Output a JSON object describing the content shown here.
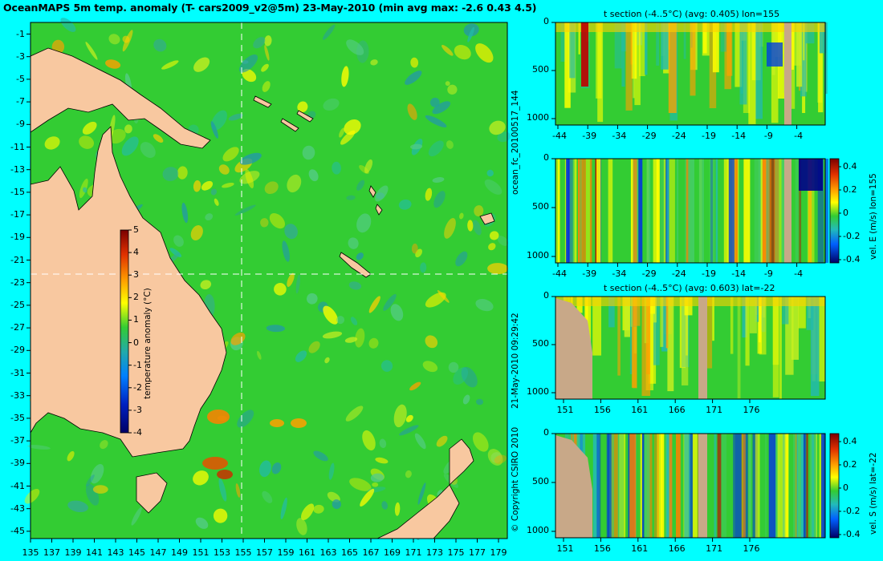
{
  "header": {
    "title": "OceanMAPS 5m temp. anomaly (T- cars2009_v2@5m) 23-May-2010 (min avg max: -2.6 0.43 4.5)"
  },
  "map": {
    "lon_ticks": [
      "135",
      "137",
      "139",
      "141",
      "143",
      "145",
      "147",
      "149",
      "151",
      "153",
      "155",
      "157",
      "159",
      "161",
      "163",
      "165",
      "167",
      "169",
      "171",
      "173",
      "175",
      "177",
      "179"
    ],
    "lat_ticks": [
      "-1",
      "-3",
      "-5",
      "-7",
      "-9",
      "-11",
      "-13",
      "-15",
      "-17",
      "-19",
      "-21",
      "-23",
      "-25",
      "-27",
      "-29",
      "-31",
      "-33",
      "-35",
      "-37",
      "-39",
      "-41",
      "-43",
      "-45"
    ],
    "crosshair_lon": 155,
    "crosshair_lat": -22,
    "colorbar": {
      "label": "temperature anomaly (°C)",
      "ticks": [
        "5",
        "4",
        "3",
        "2",
        "1",
        "0",
        "-1",
        "-2",
        "-3",
        "-4"
      ]
    }
  },
  "side": {
    "run_id": "ocean_fc_20100517_144",
    "timestamp": "21-May-2010 09:29:42",
    "copyright": "© Copyright CSIRO 2010"
  },
  "panels": [
    {
      "title": "t section (-4..5°C) (avg: 0.405) lon=155",
      "x_ticks": [
        "-44",
        "-39",
        "-34",
        "-29",
        "-24",
        "-19",
        "-14",
        "-9",
        "-4"
      ],
      "y_ticks": [
        "0",
        "500",
        "1000"
      ],
      "colorbar_label": "",
      "colorbar_ticks": []
    },
    {
      "title": "",
      "x_ticks": [
        "-44",
        "-39",
        "-34",
        "-29",
        "-24",
        "-19",
        "-14",
        "-9",
        "-4"
      ],
      "y_ticks": [
        "0",
        "500",
        "1000"
      ],
      "colorbar_label": "vel. E (m/s) lon=155",
      "colorbar_ticks": [
        "0.4",
        "0.2",
        "0",
        "-0.2",
        "-0.4"
      ]
    },
    {
      "title": "t section (-4..5°C) (avg: 0.603) lat=-22",
      "x_ticks": [
        "151",
        "156",
        "161",
        "166",
        "171",
        "176"
      ],
      "y_ticks": [
        "0",
        "500",
        "1000"
      ],
      "colorbar_label": "",
      "colorbar_ticks": []
    },
    {
      "title": "",
      "x_ticks": [
        "151",
        "156",
        "161",
        "166",
        "171",
        "176"
      ],
      "y_ticks": [
        "0",
        "500",
        "1000"
      ],
      "colorbar_label": "vel. S (m/s) lat=-22",
      "colorbar_ticks": [
        "0.4",
        "0.2",
        "0",
        "-0.2",
        "-0.4"
      ]
    }
  ],
  "colors": {
    "background": "#00ffff",
    "land": "#f8c8a0",
    "section_land": "#c8a888",
    "ocean_base": "#33cc33"
  },
  "chart_data": [
    {
      "type": "heatmap",
      "title": "OceanMAPS 5m temp. anomaly (T- cars2009_v2@5m) 23-May-2010 (min avg max: -2.6 0.43 4.5)",
      "xlabel": "",
      "ylabel": "",
      "xlim": [
        135,
        180
      ],
      "ylim": [
        -45,
        0
      ],
      "zlim": [
        -4,
        5
      ],
      "colorbar_label": "temperature anomaly (°C)",
      "grid": false
    },
    {
      "type": "heatmap",
      "title": "t section (-4..5°C) (avg: 0.405) lon=155",
      "xlim": [
        -46,
        0
      ],
      "ylim": [
        1050,
        0
      ],
      "zlim": [
        -4,
        5
      ]
    },
    {
      "type": "heatmap",
      "title": "",
      "xlim": [
        -46,
        0
      ],
      "ylim": [
        1050,
        0
      ],
      "zlim": [
        -0.4,
        0.45
      ],
      "colorbar_label": "vel. E (m/s) lon=155"
    },
    {
      "type": "heatmap",
      "title": "t section (-4..5°C) (avg: 0.603) lat=-22",
      "xlim": [
        150,
        180
      ],
      "ylim": [
        1050,
        0
      ],
      "zlim": [
        -4,
        5
      ]
    },
    {
      "type": "heatmap",
      "title": "",
      "xlim": [
        150,
        180
      ],
      "ylim": [
        1050,
        0
      ],
      "zlim": [
        -0.4,
        0.45
      ],
      "colorbar_label": "vel. S (m/s) lat=-22"
    }
  ]
}
